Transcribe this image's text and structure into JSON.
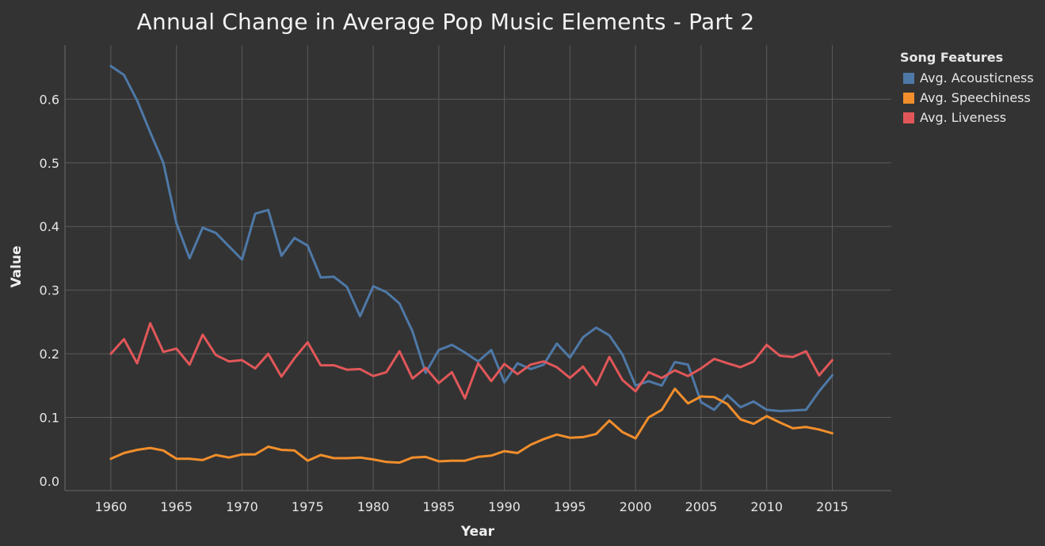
{
  "chart_data": {
    "type": "line",
    "title": "Annual Change in Average Pop Music Elements - Part 2",
    "xlabel": "Year",
    "ylabel": "Value",
    "xlim": [
      1956.5,
      2019.5
    ],
    "ylim": [
      -0.015,
      0.685
    ],
    "grid": true,
    "legend_position": "top-right",
    "legend_title": "Song Features",
    "x_ticks": [
      1960,
      1965,
      1970,
      1975,
      1980,
      1985,
      1990,
      1995,
      2000,
      2005,
      2010,
      2015
    ],
    "y_ticks": [
      0.0,
      0.1,
      0.2,
      0.3,
      0.4,
      0.5,
      0.6
    ],
    "y_tick_labels": [
      "0.0",
      "0.1",
      "0.2",
      "0.3",
      "0.4",
      "0.5",
      "0.6"
    ],
    "x": [
      1960,
      1961,
      1962,
      1963,
      1964,
      1965,
      1966,
      1967,
      1968,
      1969,
      1970,
      1971,
      1972,
      1973,
      1974,
      1975,
      1976,
      1977,
      1978,
      1979,
      1980,
      1981,
      1982,
      1983,
      1984,
      1985,
      1986,
      1987,
      1988,
      1989,
      1990,
      1991,
      1992,
      1993,
      1994,
      1995,
      1996,
      1997,
      1998,
      1999,
      2000,
      2001,
      2002,
      2003,
      2004,
      2005,
      2006,
      2007,
      2008,
      2009,
      2010,
      2011,
      2012,
      2013,
      2014,
      2015
    ],
    "series": [
      {
        "name": "Avg. Acousticness",
        "color": "#4e79a7",
        "values": [
          0.652,
          0.638,
          0.598,
          0.548,
          0.5,
          0.405,
          0.35,
          0.398,
          0.39,
          0.369,
          0.348,
          0.42,
          0.426,
          0.354,
          0.382,
          0.37,
          0.32,
          0.321,
          0.305,
          0.259,
          0.306,
          0.297,
          0.279,
          0.235,
          0.17,
          0.206,
          0.214,
          0.202,
          0.188,
          0.206,
          0.155,
          0.185,
          0.176,
          0.183,
          0.216,
          0.194,
          0.226,
          0.241,
          0.229,
          0.199,
          0.15,
          0.157,
          0.15,
          0.187,
          0.183,
          0.124,
          0.112,
          0.135,
          0.116,
          0.125,
          0.112,
          0.11,
          0.111,
          0.112,
          0.141,
          0.166
        ]
      },
      {
        "name": "Avg. Speechiness",
        "color": "#f28e2b",
        "values": [
          0.035,
          0.044,
          0.049,
          0.052,
          0.048,
          0.035,
          0.035,
          0.033,
          0.041,
          0.037,
          0.042,
          0.042,
          0.054,
          0.049,
          0.048,
          0.032,
          0.041,
          0.036,
          0.036,
          0.037,
          0.034,
          0.03,
          0.029,
          0.037,
          0.038,
          0.031,
          0.032,
          0.032,
          0.038,
          0.04,
          0.047,
          0.044,
          0.057,
          0.066,
          0.073,
          0.068,
          0.069,
          0.074,
          0.095,
          0.077,
          0.067,
          0.1,
          0.112,
          0.145,
          0.122,
          0.133,
          0.132,
          0.121,
          0.097,
          0.09,
          0.102,
          0.092,
          0.083,
          0.085,
          0.081,
          0.075
        ]
      },
      {
        "name": "Avg. Liveness",
        "color": "#e15759",
        "values": [
          0.2,
          0.223,
          0.185,
          0.248,
          0.203,
          0.208,
          0.183,
          0.23,
          0.198,
          0.188,
          0.19,
          0.177,
          0.2,
          0.164,
          0.193,
          0.218,
          0.182,
          0.182,
          0.175,
          0.176,
          0.165,
          0.171,
          0.204,
          0.161,
          0.178,
          0.154,
          0.171,
          0.13,
          0.185,
          0.157,
          0.184,
          0.168,
          0.183,
          0.188,
          0.179,
          0.162,
          0.18,
          0.151,
          0.195,
          0.159,
          0.141,
          0.171,
          0.162,
          0.174,
          0.165,
          0.177,
          0.192,
          0.185,
          0.179,
          0.188,
          0.214,
          0.197,
          0.195,
          0.204,
          0.166,
          0.19
        ]
      }
    ]
  }
}
